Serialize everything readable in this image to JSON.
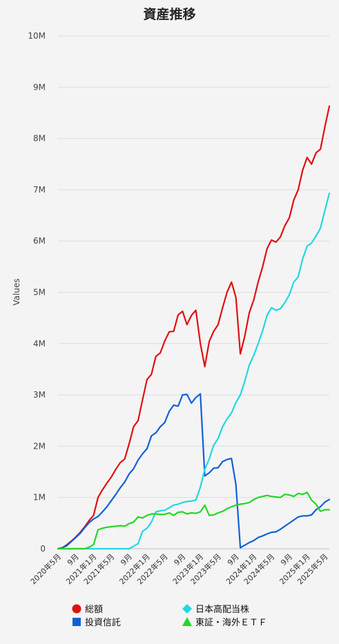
{
  "chart_data": {
    "type": "line",
    "title": "資産推移",
    "ylabel": "Values",
    "ylim": [
      0,
      10000000
    ],
    "y_ticks": [
      "0",
      "1M",
      "2M",
      "3M",
      "4M",
      "5M",
      "6M",
      "7M",
      "8M",
      "9M",
      "10M"
    ],
    "x_ticks": [
      "2020年5月",
      "9月",
      "2021年1月",
      "2021年5月",
      "9月",
      "2022年1月",
      "2022年5月",
      "9月",
      "2023年1月",
      "2023年5月",
      "9月",
      "2024年1月",
      "2024年5月",
      "9月",
      "2025年1月",
      "2025年5月"
    ],
    "grid": true,
    "legend_position": "bottom",
    "series": [
      {
        "name": "総額",
        "color": "#e01010",
        "marker": "circle",
        "points": [
          [
            0,
            0
          ],
          [
            1,
            20000
          ],
          [
            2,
            80000
          ],
          [
            3,
            150000
          ],
          [
            4,
            230000
          ],
          [
            5,
            320000
          ],
          [
            6,
            430000
          ],
          [
            7,
            550000
          ],
          [
            8,
            650000
          ],
          [
            9,
            1000000
          ],
          [
            10,
            1150000
          ],
          [
            11,
            1280000
          ],
          [
            12,
            1400000
          ],
          [
            13,
            1550000
          ],
          [
            14,
            1680000
          ],
          [
            15,
            1750000
          ],
          [
            16,
            2050000
          ],
          [
            17,
            2380000
          ],
          [
            18,
            2500000
          ],
          [
            19,
            2900000
          ],
          [
            20,
            3300000
          ],
          [
            21,
            3400000
          ],
          [
            22,
            3750000
          ],
          [
            23,
            3820000
          ],
          [
            24,
            4050000
          ],
          [
            25,
            4230000
          ],
          [
            26,
            4240000
          ],
          [
            27,
            4560000
          ],
          [
            28,
            4630000
          ],
          [
            29,
            4370000
          ],
          [
            30,
            4550000
          ],
          [
            31,
            4650000
          ],
          [
            32,
            4000000
          ],
          [
            33,
            3550000
          ],
          [
            34,
            4040000
          ],
          [
            35,
            4240000
          ],
          [
            36,
            4370000
          ],
          [
            37,
            4700000
          ],
          [
            38,
            5000000
          ],
          [
            39,
            5200000
          ],
          [
            40,
            4900000
          ],
          [
            41,
            3800000
          ],
          [
            42,
            4150000
          ],
          [
            43,
            4600000
          ],
          [
            44,
            4850000
          ],
          [
            45,
            5200000
          ],
          [
            46,
            5500000
          ],
          [
            47,
            5850000
          ],
          [
            48,
            6020000
          ],
          [
            49,
            5980000
          ],
          [
            50,
            6080000
          ],
          [
            51,
            6300000
          ],
          [
            52,
            6450000
          ],
          [
            53,
            6800000
          ],
          [
            54,
            7000000
          ],
          [
            55,
            7380000
          ],
          [
            56,
            7630000
          ],
          [
            57,
            7500000
          ],
          [
            58,
            7720000
          ],
          [
            59,
            7790000
          ],
          [
            60,
            8230000
          ],
          [
            61,
            8630000
          ]
        ]
      },
      {
        "name": "投資信託",
        "color": "#1060d8",
        "marker": "square",
        "points": [
          [
            0,
            0
          ],
          [
            1,
            20000
          ],
          [
            2,
            60000
          ],
          [
            3,
            140000
          ],
          [
            4,
            220000
          ],
          [
            5,
            300000
          ],
          [
            6,
            410000
          ],
          [
            7,
            510000
          ],
          [
            8,
            580000
          ],
          [
            9,
            630000
          ],
          [
            10,
            720000
          ],
          [
            11,
            820000
          ],
          [
            12,
            940000
          ],
          [
            13,
            1060000
          ],
          [
            14,
            1190000
          ],
          [
            15,
            1300000
          ],
          [
            16,
            1460000
          ],
          [
            17,
            1560000
          ],
          [
            18,
            1730000
          ],
          [
            19,
            1850000
          ],
          [
            20,
            1950000
          ],
          [
            21,
            2200000
          ],
          [
            22,
            2260000
          ],
          [
            23,
            2380000
          ],
          [
            24,
            2460000
          ],
          [
            25,
            2680000
          ],
          [
            26,
            2800000
          ],
          [
            27,
            2780000
          ],
          [
            28,
            3000000
          ],
          [
            29,
            3010000
          ],
          [
            30,
            2840000
          ],
          [
            31,
            2950000
          ],
          [
            32,
            3020000
          ],
          [
            33,
            1420000
          ],
          [
            34,
            1480000
          ],
          [
            35,
            1570000
          ],
          [
            36,
            1580000
          ],
          [
            37,
            1700000
          ],
          [
            38,
            1740000
          ],
          [
            39,
            1760000
          ],
          [
            40,
            1250000
          ],
          [
            41,
            20000
          ],
          [
            42,
            70000
          ],
          [
            43,
            120000
          ],
          [
            44,
            160000
          ],
          [
            45,
            220000
          ],
          [
            46,
            250000
          ],
          [
            47,
            290000
          ],
          [
            48,
            320000
          ],
          [
            49,
            330000
          ],
          [
            50,
            380000
          ],
          [
            51,
            440000
          ],
          [
            52,
            500000
          ],
          [
            53,
            560000
          ],
          [
            54,
            620000
          ],
          [
            55,
            640000
          ],
          [
            56,
            640000
          ],
          [
            57,
            660000
          ],
          [
            58,
            760000
          ],
          [
            59,
            820000
          ],
          [
            60,
            910000
          ],
          [
            61,
            960000
          ]
        ]
      },
      {
        "name": "日本高配当株",
        "color": "#20d8e0",
        "marker": "diamond",
        "points": [
          [
            0,
            0
          ],
          [
            16,
            0
          ],
          [
            17,
            50000
          ],
          [
            18,
            100000
          ],
          [
            19,
            340000
          ],
          [
            20,
            400000
          ],
          [
            21,
            520000
          ],
          [
            22,
            720000
          ],
          [
            23,
            740000
          ],
          [
            24,
            750000
          ],
          [
            25,
            800000
          ],
          [
            26,
            850000
          ],
          [
            27,
            870000
          ],
          [
            28,
            900000
          ],
          [
            29,
            920000
          ],
          [
            30,
            930000
          ],
          [
            31,
            950000
          ],
          [
            32,
            1200000
          ],
          [
            33,
            1550000
          ],
          [
            34,
            1750000
          ],
          [
            35,
            2020000
          ],
          [
            36,
            2150000
          ],
          [
            37,
            2380000
          ],
          [
            38,
            2530000
          ],
          [
            39,
            2650000
          ],
          [
            40,
            2850000
          ],
          [
            41,
            3000000
          ],
          [
            42,
            3270000
          ],
          [
            43,
            3580000
          ],
          [
            44,
            3770000
          ],
          [
            45,
            4000000
          ],
          [
            46,
            4250000
          ],
          [
            47,
            4550000
          ],
          [
            48,
            4700000
          ],
          [
            49,
            4650000
          ],
          [
            50,
            4680000
          ],
          [
            51,
            4800000
          ],
          [
            52,
            4950000
          ],
          [
            53,
            5200000
          ],
          [
            54,
            5300000
          ],
          [
            55,
            5650000
          ],
          [
            56,
            5900000
          ],
          [
            57,
            5960000
          ],
          [
            58,
            6100000
          ],
          [
            59,
            6250000
          ],
          [
            60,
            6600000
          ],
          [
            61,
            6930000
          ]
        ]
      },
      {
        "name": "東証・海外ＥＴＦ",
        "color": "#22d822",
        "marker": "triangle",
        "points": [
          [
            0,
            0
          ],
          [
            6,
            0
          ],
          [
            7,
            30000
          ],
          [
            8,
            80000
          ],
          [
            9,
            370000
          ],
          [
            10,
            400000
          ],
          [
            11,
            420000
          ],
          [
            12,
            430000
          ],
          [
            13,
            440000
          ],
          [
            14,
            450000
          ],
          [
            15,
            440000
          ],
          [
            16,
            490000
          ],
          [
            17,
            520000
          ],
          [
            18,
            620000
          ],
          [
            19,
            600000
          ],
          [
            20,
            650000
          ],
          [
            21,
            680000
          ],
          [
            22,
            680000
          ],
          [
            23,
            670000
          ],
          [
            24,
            670000
          ],
          [
            25,
            700000
          ],
          [
            26,
            650000
          ],
          [
            27,
            710000
          ],
          [
            28,
            720000
          ],
          [
            29,
            680000
          ],
          [
            30,
            700000
          ],
          [
            31,
            690000
          ],
          [
            32,
            720000
          ],
          [
            33,
            850000
          ],
          [
            34,
            650000
          ],
          [
            35,
            660000
          ],
          [
            36,
            700000
          ],
          [
            37,
            730000
          ],
          [
            38,
            780000
          ],
          [
            39,
            820000
          ],
          [
            40,
            850000
          ],
          [
            41,
            870000
          ],
          [
            42,
            880000
          ],
          [
            43,
            900000
          ],
          [
            44,
            960000
          ],
          [
            45,
            1000000
          ],
          [
            46,
            1020000
          ],
          [
            47,
            1040000
          ],
          [
            48,
            1020000
          ],
          [
            49,
            1010000
          ],
          [
            50,
            1000000
          ],
          [
            51,
            1060000
          ],
          [
            52,
            1050000
          ],
          [
            53,
            1020000
          ],
          [
            54,
            1080000
          ],
          [
            55,
            1060000
          ],
          [
            56,
            1100000
          ],
          [
            57,
            950000
          ],
          [
            58,
            870000
          ],
          [
            59,
            730000
          ],
          [
            60,
            760000
          ],
          [
            61,
            760000
          ]
        ]
      }
    ]
  }
}
